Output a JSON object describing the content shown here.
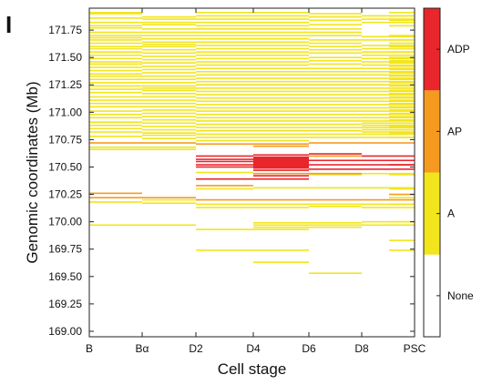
{
  "panel_label": "I",
  "colors": {
    "A": "#f2e51d",
    "AP": "#f59a1e",
    "ADP": "#e8262b",
    "None": "#ffffff",
    "frame": "#222222"
  },
  "chart_data": {
    "type": "heatmap",
    "title": "",
    "xlabel": "Cell stage",
    "ylabel": "Genomic coordinates (Mb)",
    "x_categories": [
      "B",
      "Bα",
      "D2",
      "D4",
      "D6",
      "D8",
      "PSC"
    ],
    "ylim": [
      168.95,
      171.95
    ],
    "y_ticks": [
      169.0,
      169.25,
      169.5,
      169.75,
      170.0,
      170.25,
      170.5,
      170.75,
      171.0,
      171.25,
      171.5,
      171.75
    ],
    "y_tick_labels": [
      "169.00",
      "169.25",
      "169.50",
      "169.75",
      "170.00",
      "170.25",
      "170.50",
      "170.75",
      "171.00",
      "171.25",
      "171.50",
      "171.75"
    ],
    "legend": {
      "placement": "right colorbar",
      "states": [
        "None",
        "A",
        "AP",
        "ADP"
      ]
    },
    "segments": [
      {
        "start": "B",
        "end": "Bα",
        "state": "A",
        "mb": [
          171.91,
          171.9,
          171.86,
          171.82,
          171.79,
          171.77,
          171.73,
          171.7,
          171.68,
          171.66,
          171.63,
          171.6,
          171.58,
          171.55,
          171.52,
          171.49,
          171.46,
          171.44,
          171.41,
          171.38,
          171.35,
          171.33,
          171.3,
          171.27,
          171.24,
          171.21,
          171.18,
          171.14,
          171.11,
          171.08,
          171.05,
          171.01,
          170.98,
          170.95,
          170.91,
          170.88,
          170.85,
          170.82,
          170.78,
          170.68,
          170.66,
          170.18,
          169.97
        ]
      },
      {
        "start": "B",
        "end": "Bα",
        "state": "AP",
        "mb": [
          170.72,
          170.26,
          170.22
        ]
      },
      {
        "start": "Bα",
        "end": "D2",
        "state": "A",
        "mb": [
          171.87,
          171.85,
          171.82,
          171.8,
          171.76,
          171.73,
          171.7,
          171.67,
          171.64,
          171.62,
          171.6,
          171.57,
          171.54,
          171.51,
          171.48,
          171.45,
          171.42,
          171.39,
          171.36,
          171.33,
          171.3,
          171.27,
          171.24,
          171.22,
          171.2,
          171.17,
          171.14,
          171.11,
          171.08,
          171.05,
          171.02,
          170.99,
          170.96,
          170.93,
          170.9,
          170.87,
          170.84,
          170.81,
          170.79,
          170.76,
          170.68,
          170.66,
          170.2,
          170.17,
          169.97
        ]
      },
      {
        "start": "Bα",
        "end": "D2",
        "state": "AP",
        "mb": [
          170.72,
          170.22
        ]
      },
      {
        "start": "D2",
        "end": "D4",
        "state": "A",
        "mb": [
          171.91,
          171.88,
          171.85,
          171.82,
          171.79,
          171.76,
          171.73,
          171.7,
          171.67,
          171.64,
          171.61,
          171.58,
          171.55,
          171.52,
          171.49,
          171.46,
          171.43,
          171.4,
          171.37,
          171.34,
          171.31,
          171.28,
          171.25,
          171.22,
          171.19,
          171.16,
          171.13,
          171.1,
          171.07,
          171.04,
          171.01,
          170.98,
          170.95,
          170.92,
          170.89,
          170.86,
          170.83,
          170.8,
          170.77,
          170.74,
          170.45,
          170.3,
          170.16,
          170.13,
          169.93,
          169.74
        ]
      },
      {
        "start": "D2",
        "end": "D4",
        "state": "AP",
        "mb": [
          170.71,
          170.33,
          170.2
        ]
      },
      {
        "start": "D2",
        "end": "D4",
        "state": "ADP",
        "mb": [
          170.6,
          170.57,
          170.55,
          170.52,
          170.5,
          170.39
        ]
      },
      {
        "start": "D4",
        "end": "D6",
        "state": "A",
        "mb": [
          171.91,
          171.88,
          171.85,
          171.82,
          171.79,
          171.76,
          171.73,
          171.7,
          171.67,
          171.64,
          171.61,
          171.58,
          171.55,
          171.52,
          171.49,
          171.46,
          171.43,
          171.4,
          171.37,
          171.34,
          171.31,
          171.28,
          171.25,
          171.22,
          171.19,
          171.16,
          171.13,
          171.1,
          171.07,
          171.04,
          171.01,
          170.98,
          170.95,
          170.92,
          170.89,
          170.86,
          170.83,
          170.8,
          170.77,
          170.74,
          170.31,
          170.16,
          170.13,
          169.99,
          169.97,
          169.95,
          169.93,
          169.74,
          169.63
        ]
      },
      {
        "start": "D4",
        "end": "D6",
        "state": "AP",
        "mb": [
          170.71,
          170.69,
          170.44,
          170.2
        ]
      },
      {
        "start": "D4",
        "end": "D6",
        "state": "ADP",
        "mb": [
          170.61,
          170.59,
          170.58,
          170.57,
          170.56,
          170.55,
          170.54,
          170.53,
          170.52,
          170.51,
          170.5,
          170.49,
          170.47,
          170.42,
          170.39
        ]
      },
      {
        "start": "D6",
        "end": "D8",
        "state": "A",
        "mb": [
          171.9,
          171.87,
          171.84,
          171.8,
          171.76,
          171.73,
          171.7,
          171.66,
          171.63,
          171.6,
          171.57,
          171.54,
          171.5,
          171.47,
          171.44,
          171.4,
          171.37,
          171.34,
          171.31,
          171.28,
          171.25,
          171.22,
          171.19,
          171.16,
          171.13,
          171.1,
          171.07,
          171.04,
          171.01,
          170.98,
          170.95,
          170.92,
          170.89,
          170.86,
          170.83,
          170.8,
          170.77,
          170.43,
          170.31,
          170.16,
          170.14,
          169.99,
          169.97,
          169.95,
          169.53
        ]
      },
      {
        "start": "D6",
        "end": "D8",
        "state": "AP",
        "mb": [
          170.72,
          170.6,
          170.44,
          170.2
        ]
      },
      {
        "start": "D6",
        "end": "D8",
        "state": "ADP",
        "mb": [
          170.62,
          170.56,
          170.52,
          170.48
        ]
      },
      {
        "start": "D8",
        "end": "PSC",
        "state": "A",
        "mb": [
          171.88,
          171.85,
          171.82,
          171.69,
          171.66,
          171.61,
          171.58,
          171.55,
          171.52,
          171.49,
          171.46,
          171.43,
          171.4,
          171.37,
          171.34,
          171.31,
          171.28,
          171.25,
          171.22,
          171.19,
          171.16,
          171.13,
          171.1,
          171.07,
          171.04,
          171.01,
          170.98,
          170.95,
          170.92,
          170.9,
          170.88,
          170.86,
          170.84,
          170.82,
          170.8,
          170.77,
          170.44,
          170.31,
          170.16,
          170.13,
          170.0,
          169.97
        ]
      },
      {
        "start": "D8",
        "end": "PSC",
        "state": "AP",
        "mb": [
          170.72,
          170.2
        ]
      },
      {
        "start": "D8",
        "end": "PSC",
        "state": "ADP",
        "mb": [
          170.6,
          170.56,
          170.52,
          170.48
        ]
      },
      {
        "start": "PSC",
        "end": "PSC_edge",
        "state": "A",
        "mb": [
          171.91,
          171.88,
          171.84,
          171.79,
          171.7,
          171.66,
          171.63,
          171.6,
          171.58,
          171.55,
          171.5,
          171.47,
          171.45,
          171.42,
          171.39,
          171.36,
          171.33,
          171.3,
          171.27,
          171.24,
          171.22,
          171.2,
          171.17,
          171.14,
          171.11,
          171.08,
          171.05,
          171.02,
          170.99,
          170.96,
          170.93,
          170.9,
          170.87,
          170.84,
          170.81,
          170.77,
          170.43,
          170.3,
          170.22,
          170.16,
          170.0,
          169.97,
          169.83,
          169.74
        ]
      },
      {
        "start": "PSC",
        "end": "PSC_edge",
        "state": "AP",
        "mb": [
          170.25
        ]
      },
      {
        "start": "PSC",
        "end": "PSC_edge",
        "state": "ADP",
        "mb": [
          170.52
        ]
      }
    ]
  }
}
